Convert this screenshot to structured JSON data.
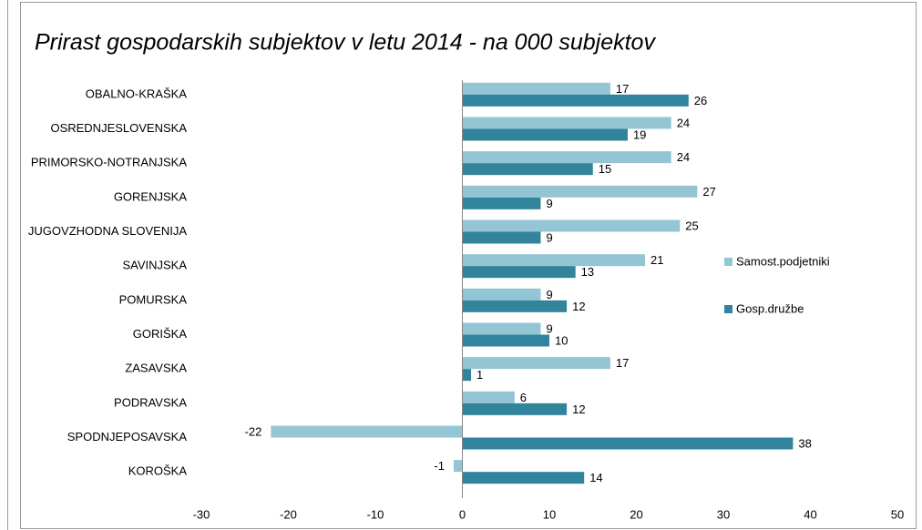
{
  "chart_data": {
    "type": "bar",
    "orientation": "horizontal",
    "title": "Prirast gospodarskih  subjektov v letu 2014 - na 000 subjektov",
    "categories": [
      "OBALNO-KRAŠKA",
      "OSREDNJESLOVENSKA",
      "PRIMORSKO-NOTRANJSKA",
      "GORENJSKA",
      "JUGOVZHODNA  SLOVENIJA",
      "SAVINJSKA",
      "POMURSKA",
      "GORIŠKA",
      "ZASAVSKA",
      "PODRAVSKA",
      "SPODNJEPOSAVSKA",
      "KOROŠKA"
    ],
    "series": [
      {
        "name": "Samost.podjetniki",
        "color": "#93c5d5",
        "values": [
          17,
          24,
          24,
          27,
          25,
          21,
          9,
          9,
          17,
          6,
          -22,
          -1
        ]
      },
      {
        "name": "Gosp.družbe",
        "color": "#31849b",
        "values": [
          26,
          19,
          15,
          9,
          9,
          13,
          12,
          10,
          1,
          12,
          38,
          14
        ]
      }
    ],
    "xlim": [
      -30,
      50
    ],
    "xticks": [
      -30,
      -20,
      -10,
      0,
      10,
      20,
      30,
      40,
      50
    ],
    "grid": false,
    "legend": "right"
  }
}
